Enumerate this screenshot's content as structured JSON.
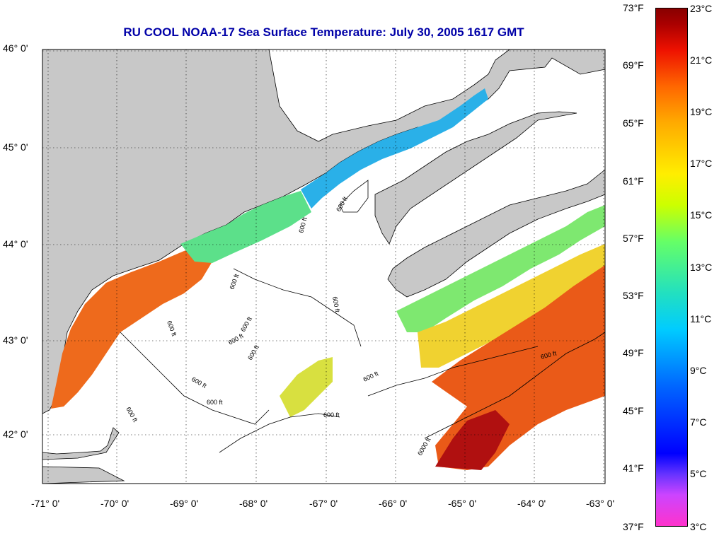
{
  "title": "RU COOL  NOAA-17  Sea Surface Temperature:  July 30, 2005 1617 GMT",
  "lat_labels": [
    "46° 0'",
    "45° 0'",
    "44° 0'",
    "43° 0'",
    "42° 0'"
  ],
  "lon_labels": [
    "-71° 0'",
    "-70° 0'",
    "-69° 0'",
    "-68° 0'",
    "-67° 0'",
    "-66° 0'",
    "-65° 0'",
    "-64° 0'",
    "-63° 0'"
  ],
  "colorbar": {
    "fahrenheit": [
      "73°F",
      "69°F",
      "65°F",
      "61°F",
      "57°F",
      "53°F",
      "49°F",
      "45°F",
      "41°F",
      "37°F"
    ],
    "celsius": [
      "23°C",
      "21°C",
      "19°C",
      "17°C",
      "15°C",
      "13°C",
      "11°C",
      "9°C",
      "7°C",
      "5°C",
      "3°C"
    ],
    "min_c": 3,
    "max_c": 23
  },
  "contour_labels": [
    "600 ft",
    "600 ft",
    "600 ft",
    "600 ft",
    "600 ft",
    "600 ft",
    "600 ft",
    "600 ft",
    "600 ft",
    "600 ft",
    "600 ft",
    "600 ft",
    "600 ft",
    "600 ft",
    "6000 ft"
  ],
  "colors": {
    "land": "#c8c8c8",
    "title": "#0000a8",
    "warm": "#ee6a1c",
    "cool": "#2ab0e8"
  }
}
